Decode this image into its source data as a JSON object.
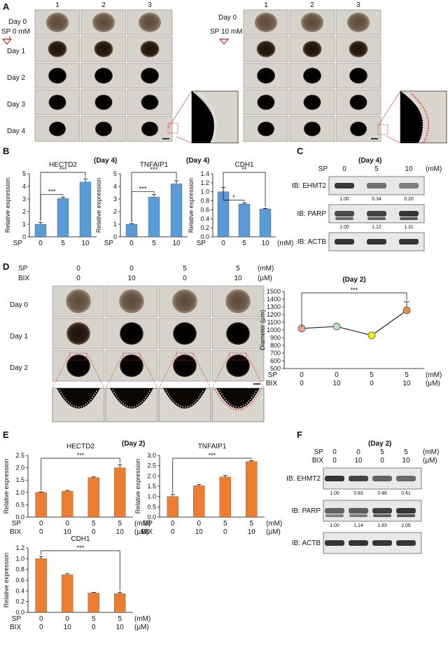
{
  "panels": {
    "A": {
      "letter": "A",
      "columns": [
        "1",
        "2",
        "3"
      ],
      "left": {
        "treatment_day": "Day 0",
        "treatment": "SP 0 mM",
        "days": [
          "Day 0",
          "Day 1",
          "Day 2",
          "Day 3",
          "Day 4"
        ]
      },
      "right": {
        "treatment_day": "Day 0",
        "treatment": "SP 10 mM",
        "days": [
          "Day 0",
          "Day 1",
          "Day 2",
          "Day 3",
          "Day 4"
        ]
      }
    },
    "B": {
      "letter": "B",
      "day_label": "(Day 4)"
    },
    "C": {
      "letter": "C",
      "day_label": "(Day 4)",
      "sp_label": "SP",
      "unit": "(mM)",
      "doses": [
        "0",
        "5",
        "10"
      ],
      "blots": [
        {
          "label": "IB: EHMT2",
          "values": [
            "1.00",
            "0.34",
            "0.20"
          ]
        },
        {
          "label": "IB: PARP",
          "values": [
            "1.00",
            "1.12",
            "1.31"
          ]
        },
        {
          "label": "IB: ACTB",
          "values": []
        }
      ]
    },
    "D": {
      "letter": "D",
      "sp_label": "SP",
      "bix_label": "BIX",
      "sp": [
        "0",
        "0",
        "5",
        "5"
      ],
      "bix": [
        "0",
        "10",
        "0",
        "10"
      ],
      "sp_unit": "(mM)",
      "bix_unit": "(µM)",
      "days": [
        "Day 0",
        "Day 1",
        "Day 2"
      ],
      "day_label": "(Day 2)"
    },
    "E": {
      "letter": "E",
      "day_label": "(Day 2)"
    },
    "F": {
      "letter": "F",
      "day_label": "(Day 2)",
      "sp_label": "SP",
      "bix_label": "BIX",
      "sp": [
        "0",
        "0",
        "5",
        "5"
      ],
      "bix": [
        "0",
        "10",
        "0",
        "10"
      ],
      "sp_unit": "(mM)",
      "bix_unit": "(µM)",
      "blots": [
        {
          "label": "IB: EHMT2",
          "values": [
            "1.00",
            "0.83",
            "0.48",
            "0.41"
          ]
        },
        {
          "label": "IB: PARP",
          "values": [
            "1.00",
            "1.14",
            "1.83",
            "2.05"
          ]
        },
        {
          "label": "IB: ACTB",
          "values": []
        }
      ]
    }
  },
  "chart_data": [
    {
      "id": "B1",
      "type": "bar",
      "title": "HECTD2",
      "ylabel": "Relative expression",
      "ylim": [
        0,
        5
      ],
      "yticks": [
        0,
        1,
        2,
        3,
        4,
        5
      ],
      "categories": [
        "0",
        "5",
        "10"
      ],
      "values": [
        1.0,
        3.05,
        4.35
      ],
      "errors": [
        0.15,
        0.1,
        0.25
      ],
      "xrow": [
        {
          "label": "SP",
          "values": [
            "0",
            "5",
            "10"
          ]
        }
      ],
      "unit": "",
      "sig": [
        {
          "from": 0,
          "to": 1,
          "text": "***"
        },
        {
          "from": 0,
          "to": 2,
          "text": "***"
        }
      ],
      "color": "#5B9BD5"
    },
    {
      "id": "B2",
      "type": "bar",
      "title": "TNFAIP1",
      "ylabel": "Relative expression",
      "ylim": [
        0,
        5
      ],
      "yticks": [
        0,
        1,
        2,
        3,
        4,
        5
      ],
      "categories": [
        "0",
        "5",
        "10"
      ],
      "values": [
        1.0,
        3.15,
        4.2
      ],
      "errors": [
        0.05,
        0.2,
        0.25
      ],
      "xrow": [
        {
          "label": "SP",
          "values": [
            "0",
            "5",
            "10"
          ]
        }
      ],
      "unit": "",
      "sig": [
        {
          "from": 0,
          "to": 1,
          "text": "***"
        },
        {
          "from": 0,
          "to": 2,
          "text": "***"
        }
      ],
      "color": "#5B9BD5"
    },
    {
      "id": "B3",
      "type": "bar",
      "title": "CDH1",
      "ylabel": "Relative expression",
      "ylim": [
        0,
        1.4
      ],
      "yticks": [
        0,
        0.2,
        0.4,
        0.6,
        0.8,
        1.0,
        1.2,
        1.4
      ],
      "categories": [
        "0",
        "5",
        "10"
      ],
      "values": [
        1.0,
        0.73,
        0.62
      ],
      "errors": [
        0.1,
        0.02,
        0.01
      ],
      "xrow": [
        {
          "label": "SP",
          "values": [
            "0",
            "5",
            "10"
          ]
        }
      ],
      "unit": "(mM)",
      "sig": [
        {
          "from": 0,
          "to": 1,
          "text": "*"
        },
        {
          "from": 0,
          "to": 2,
          "text": "**"
        }
      ],
      "color": "#5B9BD5"
    },
    {
      "id": "D",
      "type": "line",
      "title": "(Day 2)",
      "ylabel": "Diameter (µm)",
      "ylim": [
        500,
        1500
      ],
      "yticks": [
        500,
        600,
        700,
        800,
        900,
        1000,
        1100,
        1200,
        1300,
        1400,
        1500
      ],
      "categories": [
        "1",
        "2",
        "3",
        "4"
      ],
      "values": [
        1020,
        1045,
        930,
        1255
      ],
      "errors": [
        0,
        0,
        0,
        110
      ],
      "point_colors": [
        "#F4A582",
        "#B8E0B8",
        "#FFF200",
        "#F08C3C"
      ],
      "xrow": [
        {
          "label": "SP",
          "values": [
            "0",
            "0",
            "5",
            "5"
          ],
          "unit": "(mM)"
        },
        {
          "label": "BIX",
          "values": [
            "0",
            "10",
            "0",
            "10"
          ],
          "unit": "(µM)"
        }
      ],
      "sig": [
        {
          "from": 0,
          "to": 3,
          "text": "***"
        }
      ]
    },
    {
      "id": "E1",
      "type": "bar",
      "title": "HECTD2",
      "ylabel": "Relative expression",
      "ylim": [
        0,
        2.5
      ],
      "yticks": [
        0,
        0.5,
        1.0,
        1.5,
        2.0,
        2.5
      ],
      "categories": [
        "1",
        "2",
        "3",
        "4"
      ],
      "values": [
        1.0,
        1.05,
        1.6,
        2.0
      ],
      "errors": [
        0.02,
        0.03,
        0.03,
        0.12
      ],
      "xrow": [
        {
          "label": "SP",
          "values": [
            "0",
            "0",
            "5",
            "5"
          ],
          "unit": "(mM)"
        },
        {
          "label": "BIX",
          "values": [
            "0",
            "10",
            "0",
            "10"
          ],
          "unit": "(µM)"
        }
      ],
      "sig": [
        {
          "from": 0,
          "to": 3,
          "text": "***"
        }
      ],
      "color": "#ED7D31"
    },
    {
      "id": "E2",
      "type": "bar",
      "title": "TNFAIP1",
      "ylabel": "Relative expression",
      "ylim": [
        0,
        3.0
      ],
      "yticks": [
        0,
        0.5,
        1.0,
        1.5,
        2.0,
        2.5,
        3.0
      ],
      "categories": [
        "1",
        "2",
        "3",
        "4"
      ],
      "values": [
        1.0,
        1.53,
        1.95,
        2.7
      ],
      "errors": [
        0.1,
        0.05,
        0.07,
        0.05
      ],
      "xrow": [
        {
          "label": "SP",
          "values": [
            "0",
            "0",
            "5",
            "5"
          ],
          "unit": "(mM)"
        },
        {
          "label": "BIX",
          "values": [
            "0",
            "10",
            "0",
            "10"
          ],
          "unit": "(µM)"
        }
      ],
      "sig": [
        {
          "from": 0,
          "to": 3,
          "text": "***"
        }
      ],
      "color": "#ED7D31"
    },
    {
      "id": "E3",
      "type": "bar",
      "title": "CDH1",
      "ylabel": "Relative expression",
      "ylim": [
        0,
        1.2
      ],
      "yticks": [
        0,
        0.2,
        0.4,
        0.6,
        0.8,
        1.0,
        1.2
      ],
      "categories": [
        "1",
        "2",
        "3",
        "4"
      ],
      "values": [
        1.0,
        0.7,
        0.36,
        0.35
      ],
      "errors": [
        0.04,
        0.02,
        0.01,
        0.02
      ],
      "xrow": [
        {
          "label": "SP",
          "values": [
            "0",
            "0",
            "5",
            "5"
          ],
          "unit": "(mM)"
        },
        {
          "label": "BIX",
          "values": [
            "0",
            "10",
            "0",
            "10"
          ],
          "unit": "(µM)"
        }
      ],
      "sig": [
        {
          "from": 0,
          "to": 3,
          "text": "***"
        }
      ],
      "color": "#ED7D31"
    }
  ]
}
